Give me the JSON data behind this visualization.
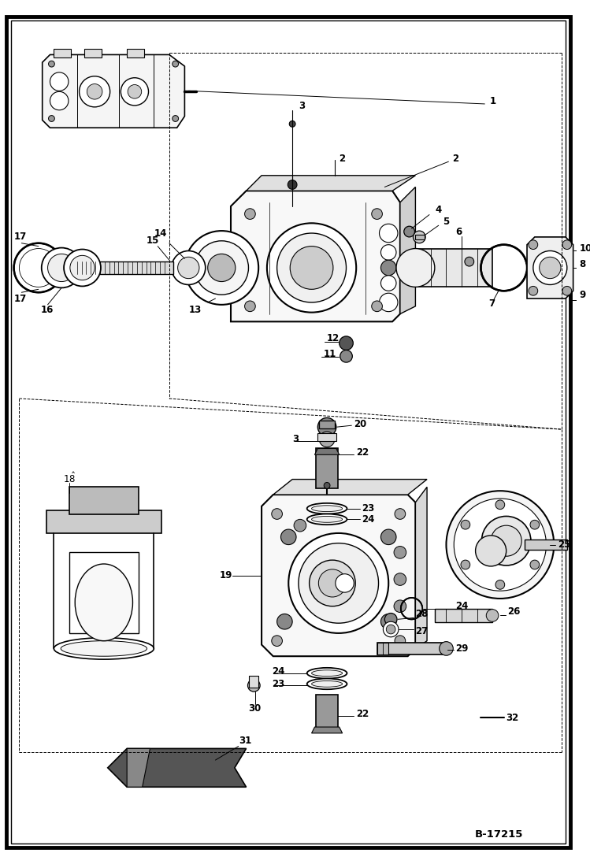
{
  "figure_width": 7.49,
  "figure_height": 10.97,
  "dpi": 100,
  "bg_color": "#ffffff",
  "border_color": "#000000",
  "diagram_code_ref": "B-17215",
  "lfs": 8.5,
  "title": ""
}
